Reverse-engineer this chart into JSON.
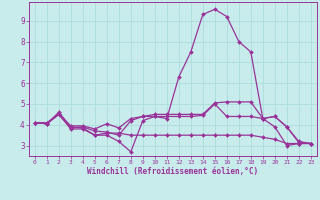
{
  "xlabel": "Windchill (Refroidissement éolien,°C)",
  "bg_color": "#c8ecec",
  "grid_color": "#b0dede",
  "line_color": "#993399",
  "xlim": [
    -0.5,
    23.5
  ],
  "ylim": [
    2.5,
    9.9
  ],
  "ytick_values": [
    3,
    4,
    5,
    6,
    7,
    8,
    9
  ],
  "lines": [
    {
      "x": [
        0,
        1,
        2,
        3,
        4,
        5,
        6,
        7,
        8,
        9,
        10,
        11,
        12,
        13,
        14,
        15,
        16,
        17,
        18,
        19,
        20,
        21,
        22,
        23
      ],
      "y": [
        4.1,
        4.1,
        4.5,
        3.8,
        3.8,
        3.5,
        3.5,
        3.2,
        2.7,
        4.2,
        4.4,
        4.3,
        6.3,
        7.5,
        9.3,
        9.55,
        9.2,
        8.0,
        7.5,
        4.3,
        3.9,
        3.0,
        3.1,
        3.1
      ]
    },
    {
      "x": [
        0,
        1,
        2,
        3,
        4,
        5,
        6,
        7,
        8,
        9,
        10,
        11,
        12,
        13,
        14,
        15,
        16,
        17,
        18,
        19,
        20,
        21,
        22,
        23
      ],
      "y": [
        4.1,
        4.05,
        4.5,
        3.85,
        3.9,
        3.7,
        3.65,
        3.5,
        4.2,
        4.4,
        4.4,
        4.4,
        4.4,
        4.4,
        4.45,
        5.0,
        4.4,
        4.4,
        4.4,
        4.3,
        4.4,
        3.9,
        3.15,
        3.1
      ]
    },
    {
      "x": [
        0,
        1,
        2,
        3,
        4,
        5,
        6,
        7,
        8,
        9,
        10,
        11,
        12,
        13,
        14,
        15,
        16,
        17,
        18,
        19,
        20,
        21,
        22,
        23
      ],
      "y": [
        4.1,
        4.05,
        4.6,
        3.9,
        3.85,
        3.5,
        3.6,
        3.6,
        3.5,
        3.5,
        3.5,
        3.5,
        3.5,
        3.5,
        3.5,
        3.5,
        3.5,
        3.5,
        3.5,
        3.4,
        3.3,
        3.1,
        3.1,
        3.1
      ]
    },
    {
      "x": [
        0,
        1,
        2,
        3,
        4,
        5,
        6,
        7,
        8,
        9,
        10,
        11,
        12,
        13,
        14,
        15,
        16,
        17,
        18,
        19,
        20,
        21,
        22,
        23
      ],
      "y": [
        4.1,
        4.05,
        4.5,
        3.95,
        3.95,
        3.8,
        4.05,
        3.85,
        4.3,
        4.4,
        4.5,
        4.5,
        4.5,
        4.5,
        4.5,
        5.05,
        5.1,
        5.1,
        5.1,
        4.3,
        4.4,
        3.9,
        3.2,
        3.1
      ]
    }
  ]
}
